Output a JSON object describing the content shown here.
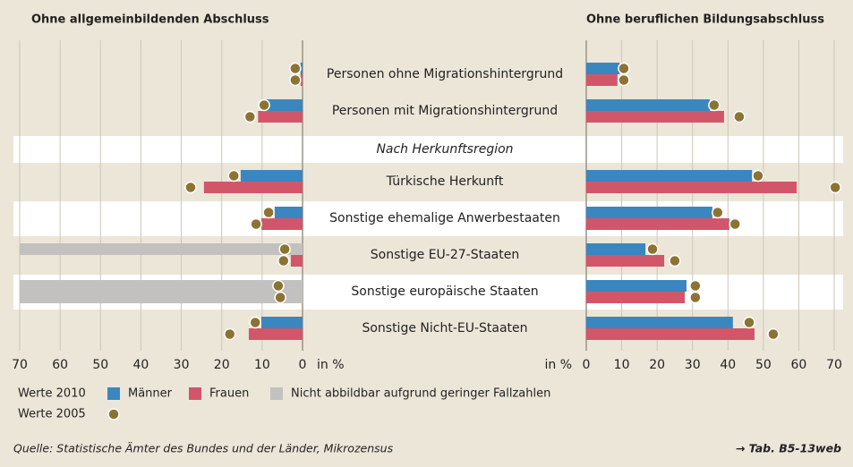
{
  "chart_data": [
    {
      "type": "bar",
      "title": "Ohne allgemeinbildenden Abschluss",
      "xlabel": "in %",
      "xlim": [
        0,
        70
      ],
      "xticks": [
        0,
        10,
        20,
        30,
        40,
        50,
        60,
        70
      ],
      "series": [
        {
          "name": "Männer",
          "color": "#3a87c0",
          "values": [
            0.5,
            9,
            15.3,
            6.9,
            null,
            null,
            10.2
          ],
          "values_2005": [
            1.8,
            9.5,
            17,
            8.4,
            4.4,
            6,
            11.7
          ]
        },
        {
          "name": "Frauen",
          "color": "#d2566a",
          "values": [
            0.5,
            11,
            24.4,
            10.2,
            2.9,
            null,
            13.3
          ],
          "values_2005": [
            1.8,
            13,
            27.7,
            11.5,
            4.7,
            5.5,
            18
          ]
        }
      ]
    },
    {
      "type": "bar",
      "title": "Ohne beruflichen Bildungsabschluss",
      "xlabel": "in %",
      "xlim": [
        0,
        70
      ],
      "xticks": [
        0,
        10,
        20,
        30,
        40,
        50,
        60,
        70
      ],
      "series": [
        {
          "name": "Männer",
          "color": "#3a87c0",
          "values": [
            9.4,
            34.9,
            46.8,
            35.6,
            16.7,
            28.3,
            41.4
          ],
          "values_2005": [
            10.6,
            36.1,
            48.5,
            37.1,
            18.7,
            30.8,
            46
          ]
        },
        {
          "name": "Frauen",
          "color": "#d2566a",
          "values": [
            8.8,
            38.9,
            59.4,
            40.4,
            22,
            27.8,
            47.5
          ],
          "values_2005": [
            10.6,
            43.2,
            70.3,
            42,
            25,
            30.8,
            52.8
          ]
        }
      ]
    }
  ],
  "categories": [
    "Personen ohne Migrationshintergrund",
    "Personen mit Migrationshintergrund",
    "Türkische Herkunft",
    "Sonstige ehemalige Anwerbestaaten",
    "Sonstige EU-27-Staaten",
    "Sonstige europäische Staaten",
    "Sonstige Nicht-EU-Staaten"
  ],
  "section_label": "Nach Herkunftsregion",
  "legend": {
    "label_2010": "Werte 2010",
    "label_2005": "Werte 2005",
    "na_label": "Nicht abbildbar aufgrund geringer Fallzahlen",
    "na_color": "#c3c1c0",
    "dot_color": "#8c7333"
  },
  "source": "Quelle: Statistische Ämter des Bundes und der Länder, Mikrozensus",
  "reference": "→ Tab. B5-13web"
}
